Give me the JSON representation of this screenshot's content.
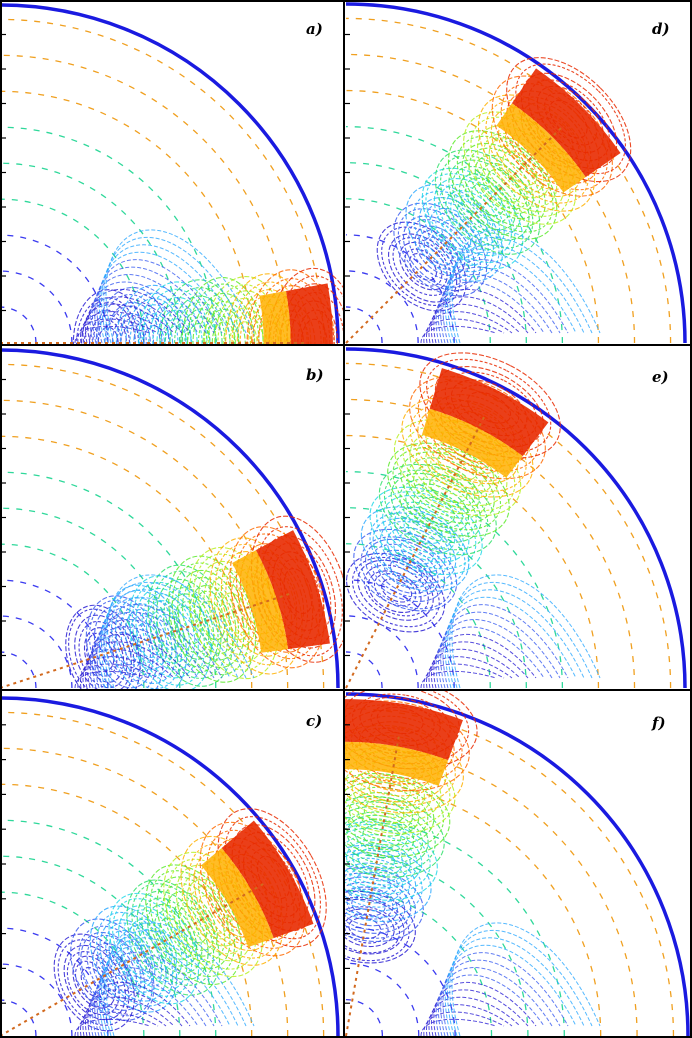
{
  "figure": {
    "panels": [
      {
        "id": "a",
        "label": "a)",
        "rotation_deg": 0
      },
      {
        "id": "d",
        "label": "d)",
        "rotation_deg": 45
      },
      {
        "id": "b",
        "label": "b)",
        "rotation_deg": 18
      },
      {
        "id": "e",
        "label": "e)",
        "rotation_deg": 63
      },
      {
        "id": "c",
        "label": "c)",
        "rotation_deg": 30
      },
      {
        "id": "f",
        "label": "f)",
        "rotation_deg": 80
      }
    ],
    "colors": {
      "frame": "#000000",
      "guide_line": "#d2691e",
      "level_scale": [
        "#2a1fd4",
        "#3a5cf0",
        "#2aa8ff",
        "#22d8e8",
        "#2fe06a",
        "#5cea2a",
        "#b8f020",
        "#ffb000",
        "#ff6a00",
        "#e82a00"
      ],
      "rim": "#1a1ae0"
    }
  }
}
